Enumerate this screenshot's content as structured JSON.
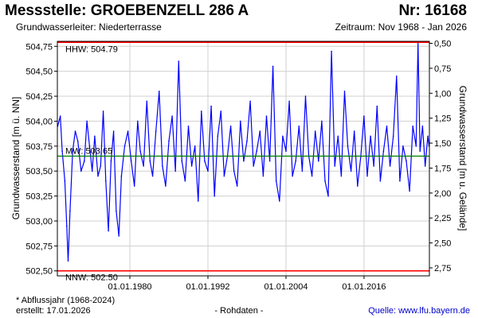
{
  "header": {
    "title": "Messstelle: GROEBENZELL 286 A",
    "number": "Nr: 16168",
    "aquifer": "Grundwasserleiter:   Niederterrasse",
    "period": "Zeitraum: Nov 1968 - Jan 2026"
  },
  "footer": {
    "note": "* Abflussjahr (1968-2024)",
    "created": "erstellt:  17.01.2026",
    "raw": "- Rohdaten -",
    "source": "Quelle: www.lfu.bayern.de"
  },
  "colors": {
    "series": "#0000ff",
    "extremes": "#ff0000",
    "mean": "#008000",
    "grid": "#d0d0d0",
    "source_link": "#0000cc"
  },
  "chart_data": {
    "type": "line",
    "ylabel_left": "Grundwasserstand [m ü. NN]",
    "ylabel_right": "Grundwasserstand [m u. Gelände]",
    "grid": true,
    "x_ticks": [
      "01.01.1980",
      "01.01.1992",
      "01.01.2004",
      "01.01.2016"
    ],
    "x_tick_years": [
      1980,
      1992,
      2004,
      2016
    ],
    "xlim": [
      1968.85,
      2026.05
    ],
    "ylim": [
      502.45,
      504.8
    ],
    "y_ticks_left": [
      "502,50",
      "502,75",
      "503,00",
      "503,25",
      "503,50",
      "503,75",
      "504,00",
      "504,25",
      "504,50",
      "504,75"
    ],
    "y_ticks_left_values": [
      502.5,
      502.75,
      503.0,
      503.25,
      503.5,
      503.75,
      504.0,
      504.25,
      504.5,
      504.75
    ],
    "y_ticks_right": [
      "0,50",
      "0,75",
      "1,00",
      "1,25",
      "1,50",
      "1,75",
      "2,00",
      "2,25",
      "2,50",
      "2,75"
    ],
    "y_ticks_right_values": [
      504.78,
      504.53,
      504.28,
      504.03,
      503.78,
      503.53,
      503.28,
      503.03,
      502.78,
      502.53
    ],
    "reference_lines": [
      {
        "label": "HHW: 504.79",
        "value": 504.79,
        "kind": "extreme"
      },
      {
        "label": "MW: 503.65",
        "value": 503.65,
        "kind": "mean"
      },
      {
        "label": "NNW: 502.50",
        "value": 502.5,
        "kind": "extreme"
      }
    ],
    "series": [
      {
        "x": [
          1968.9,
          1969.3,
          1969.6,
          1970.0,
          1970.3,
          1970.5,
          1970.8,
          1971.2,
          1971.6,
          1972.0,
          1972.5,
          1973.0,
          1973.4,
          1973.8,
          1974.2,
          1974.6,
          1975.1,
          1975.5,
          1975.9,
          1976.3,
          1976.7,
          1977.1,
          1977.5,
          1977.9,
          1978.3,
          1978.7,
          1979.2,
          1979.7,
          1980.2,
          1980.7,
          1981.2,
          1981.6,
          1982.1,
          1982.6,
          1983.1,
          1983.5,
          1984.0,
          1984.5,
          1985.0,
          1985.5,
          1986.0,
          1986.5,
          1987.0,
          1987.5,
          1988.0,
          1988.5,
          1989.0,
          1989.5,
          1990.0,
          1990.5,
          1991.0,
          1991.5,
          1992.0,
          1992.5,
          1993.0,
          1993.5,
          1994.0,
          1994.5,
          1995.0,
          1995.5,
          1996.0,
          1996.5,
          1997.0,
          1997.5,
          1998.0,
          1998.5,
          1999.0,
          1999.5,
          2000.0,
          2000.5,
          2001.0,
          2001.5,
          2002.0,
          2002.5,
          2003.0,
          2003.5,
          2004.0,
          2004.5,
          2005.0,
          2005.5,
          2006.0,
          2006.5,
          2007.0,
          2007.5,
          2008.0,
          2008.5,
          2009.0,
          2009.5,
          2010.0,
          2010.5,
          2011.0,
          2011.5,
          2012.0,
          2012.5,
          2013.0,
          2013.5,
          2014.0,
          2014.5,
          2015.0,
          2015.5,
          2016.0,
          2016.5,
          2017.0,
          2017.5,
          2018.0,
          2018.5,
          2019.0,
          2019.5,
          2020.0,
          2020.5,
          2021.0,
          2021.5,
          2022.0,
          2022.5,
          2023.0,
          2023.5,
          2024.0,
          2024.3,
          2024.6,
          2025.0,
          2025.4,
          2025.8,
          2026.0
        ],
        "y": [
          503.95,
          504.05,
          503.7,
          503.4,
          502.95,
          502.6,
          503.1,
          503.7,
          503.9,
          503.8,
          503.5,
          503.6,
          504.0,
          503.75,
          503.5,
          503.85,
          503.45,
          503.55,
          504.1,
          503.4,
          502.9,
          503.6,
          503.9,
          503.1,
          502.85,
          503.45,
          503.75,
          503.9,
          503.6,
          503.35,
          504.0,
          503.7,
          503.55,
          504.2,
          503.6,
          503.45,
          503.9,
          504.3,
          503.55,
          503.35,
          503.8,
          504.05,
          503.5,
          504.6,
          503.6,
          503.4,
          503.95,
          503.55,
          503.75,
          503.2,
          504.1,
          503.6,
          503.5,
          504.15,
          503.25,
          503.85,
          504.1,
          503.45,
          503.65,
          503.95,
          503.5,
          503.35,
          504.0,
          503.6,
          503.8,
          504.2,
          503.55,
          503.7,
          503.9,
          503.45,
          504.05,
          503.6,
          504.55,
          503.4,
          503.2,
          503.85,
          503.7,
          504.2,
          503.45,
          503.6,
          503.95,
          503.5,
          504.25,
          503.65,
          503.45,
          503.9,
          503.6,
          504.0,
          503.4,
          503.25,
          504.7,
          503.55,
          503.85,
          503.45,
          504.3,
          503.75,
          503.5,
          503.9,
          503.35,
          503.65,
          504.05,
          503.45,
          503.85,
          503.55,
          504.15,
          503.4,
          503.7,
          503.95,
          503.55,
          503.85,
          504.45,
          503.4,
          503.75,
          503.6,
          503.3,
          503.95,
          503.75,
          504.79,
          503.7,
          503.95,
          503.55,
          503.85,
          503.75
        ]
      }
    ]
  }
}
